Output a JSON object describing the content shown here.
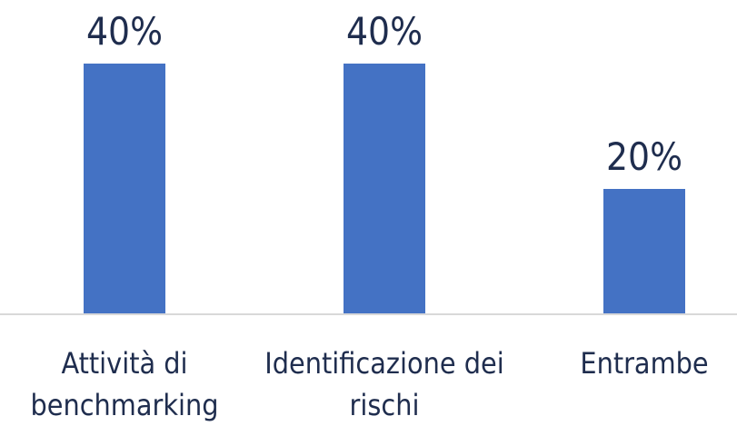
{
  "chart_data": {
    "type": "bar",
    "categories": [
      "Attività di benchmarking",
      "Identificazione dei rischi",
      "Entrambe"
    ],
    "values": [
      40,
      40,
      20
    ],
    "value_labels": [
      "40%",
      "40%",
      "20%"
    ],
    "color": "#4472c4"
  }
}
